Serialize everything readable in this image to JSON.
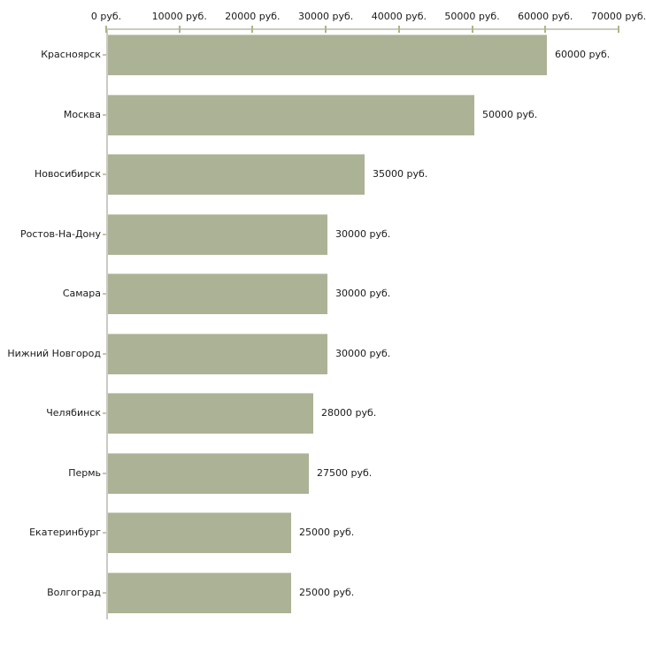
{
  "chart_data": {
    "type": "bar",
    "orientation": "horizontal",
    "title": "",
    "xlabel": "",
    "ylabel": "",
    "categories": [
      "Красноярск",
      "Москва",
      "Новосибирск",
      "Ростов-На-Дону",
      "Самара",
      "Нижний Новгород",
      "Челябинск",
      "Пермь",
      "Екатеринбург",
      "Волгоград"
    ],
    "values": [
      60000,
      50000,
      35000,
      30000,
      30000,
      30000,
      28000,
      27500,
      25000,
      25000
    ],
    "value_labels": [
      "60000 руб.",
      "50000 руб.",
      "35000 руб.",
      "30000 руб.",
      "30000 руб.",
      "30000 руб.",
      "28000 руб.",
      "27500 руб.",
      "25000 руб.",
      "25000 руб."
    ],
    "x_tick_values": [
      0,
      10000,
      20000,
      30000,
      40000,
      50000,
      60000,
      70000
    ],
    "x_tick_labels": [
      "0 руб.",
      "10000 руб.",
      "20000 руб.",
      "30000 руб.",
      "40000 руб.",
      "50000 руб.",
      "60000 руб.",
      "70000 руб."
    ],
    "xlim": [
      0,
      70000
    ],
    "unit_suffix": " руб.",
    "grid": false,
    "legend_position": "none",
    "bar_color": "#acb296",
    "axis_line_color": "#cbcbc3",
    "tick_mark_color": "#b3b387",
    "text_color": "#1a1a1a",
    "background_color": "#ffffff"
  }
}
